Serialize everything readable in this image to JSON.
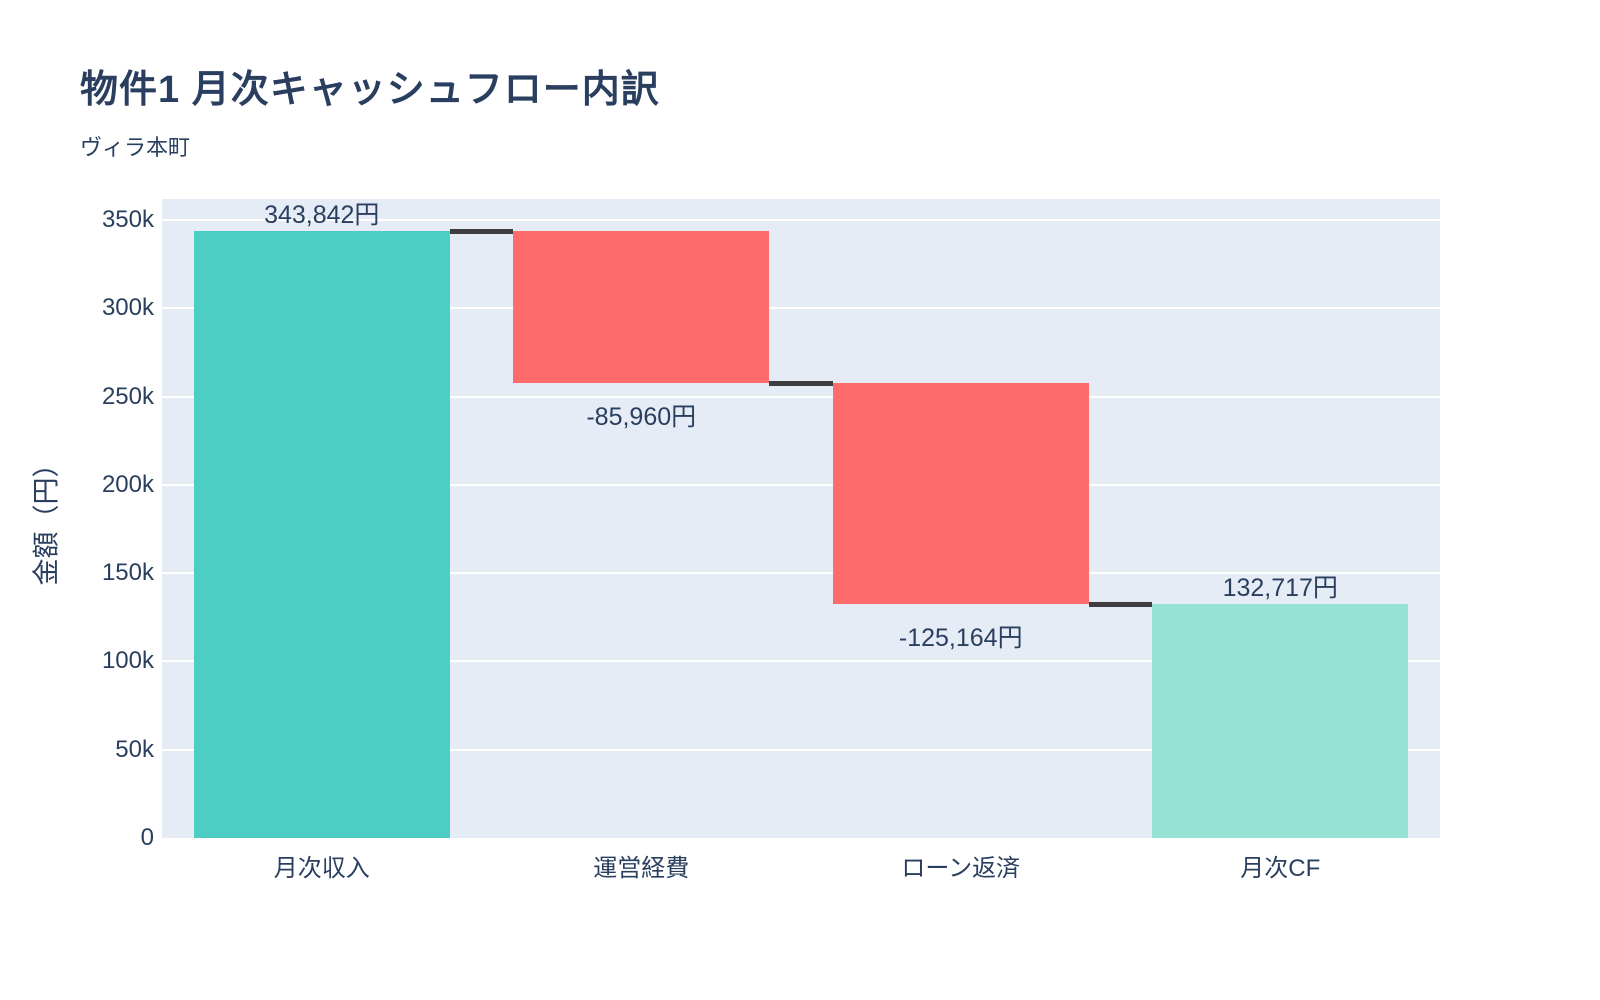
{
  "chart_data": {
    "type": "bar",
    "subtype": "waterfall",
    "title": "物件1 月次キャッシュフロー内訳",
    "subtitle": "ヴィラ本町",
    "xlabel": "",
    "ylabel": "金額（円）",
    "categories": [
      "月次収入",
      "運営経費",
      "ローン返済",
      "月次CF"
    ],
    "values": [
      343842,
      -85960,
      -125164,
      132717
    ],
    "measures": [
      "increase",
      "decrease",
      "decrease",
      "total"
    ],
    "value_labels": [
      "343,842円",
      "-85,960円",
      "-125,164円",
      "132,717円"
    ],
    "cumulative": [
      343842,
      257882,
      132718,
      132717
    ],
    "ylim": [
      0,
      361900
    ],
    "yticks": [
      0,
      50000,
      100000,
      150000,
      200000,
      250000,
      300000,
      350000
    ],
    "ytick_labels": [
      "0",
      "50k",
      "100k",
      "150k",
      "200k",
      "250k",
      "300k",
      "350k"
    ],
    "grid": true,
    "legend": false,
    "colors": {
      "increase": "#4ECDC4",
      "decrease": "#FF6B6B",
      "total": "#95E1D3",
      "connector": "#3E3E40",
      "plot_background": "#E5ECF6",
      "gridline": "#FFFFFF",
      "text": "#2A3F5F"
    }
  }
}
